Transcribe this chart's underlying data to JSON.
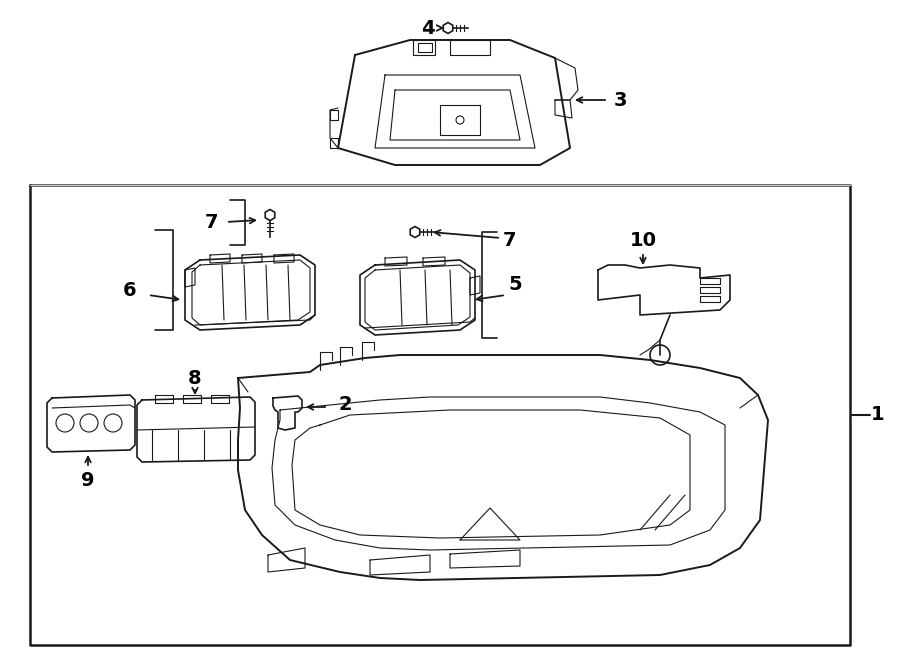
{
  "bg_color": "#ffffff",
  "line_color": "#1a1a1a",
  "text_color": "#000000",
  "figsize": [
    9.0,
    6.62
  ],
  "dpi": 100,
  "xlim": [
    0,
    900
  ],
  "ylim": [
    0,
    662
  ]
}
